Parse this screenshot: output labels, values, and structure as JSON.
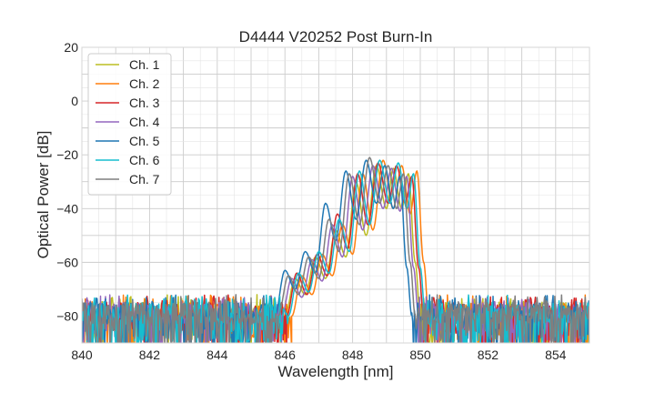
{
  "chart_data": {
    "type": "line",
    "title": "D4444 V20252 Post Burn-In",
    "xlabel": "Wavelength [nm]",
    "ylabel": "Optical Power [dB]",
    "xlim": [
      840,
      855
    ],
    "ylim": [
      -90,
      20
    ],
    "xticks": [
      840,
      842,
      844,
      846,
      848,
      850,
      852,
      854
    ],
    "yticks": [
      20,
      0,
      -20,
      -40,
      -60,
      -80
    ],
    "grid": true,
    "legend_position": "top-left",
    "noise_floor": -80,
    "series": [
      {
        "name": "Ch. 1",
        "color": "#bcbd22",
        "points": [
          [
            840,
            -80
          ],
          [
            846.0,
            -80
          ],
          [
            846.3,
            -66
          ],
          [
            846.6,
            -72
          ],
          [
            846.9,
            -58
          ],
          [
            847.2,
            -66
          ],
          [
            847.5,
            -48
          ],
          [
            847.8,
            -58
          ],
          [
            848.1,
            -30
          ],
          [
            848.4,
            -50
          ],
          [
            848.7,
            -24
          ],
          [
            849.0,
            -40
          ],
          [
            849.2,
            -25
          ],
          [
            849.45,
            -40
          ],
          [
            849.65,
            -27
          ],
          [
            849.85,
            -60
          ],
          [
            850.0,
            -80
          ],
          [
            855,
            -80
          ]
        ]
      },
      {
        "name": "Ch. 2",
        "color": "#ff7f0e",
        "points": [
          [
            840,
            -80
          ],
          [
            846.2,
            -80
          ],
          [
            846.5,
            -65
          ],
          [
            846.8,
            -72
          ],
          [
            847.1,
            -57
          ],
          [
            847.4,
            -65
          ],
          [
            847.7,
            -46
          ],
          [
            848.0,
            -57
          ],
          [
            848.3,
            -27
          ],
          [
            848.6,
            -48
          ],
          [
            848.9,
            -22
          ],
          [
            849.2,
            -40
          ],
          [
            849.45,
            -24
          ],
          [
            849.7,
            -42
          ],
          [
            849.9,
            -26
          ],
          [
            850.1,
            -60
          ],
          [
            850.25,
            -80
          ],
          [
            855,
            -80
          ]
        ]
      },
      {
        "name": "Ch. 3",
        "color": "#d62728",
        "points": [
          [
            840,
            -80
          ],
          [
            846.05,
            -80
          ],
          [
            846.35,
            -64
          ],
          [
            846.65,
            -72
          ],
          [
            846.95,
            -57
          ],
          [
            847.25,
            -65
          ],
          [
            847.55,
            -42
          ],
          [
            847.85,
            -55
          ],
          [
            848.15,
            -27
          ],
          [
            848.45,
            -46
          ],
          [
            848.75,
            -23
          ],
          [
            849.05,
            -38
          ],
          [
            849.3,
            -24
          ],
          [
            849.55,
            -38
          ],
          [
            849.75,
            -28
          ],
          [
            849.95,
            -62
          ],
          [
            850.1,
            -80
          ],
          [
            855,
            -80
          ]
        ]
      },
      {
        "name": "Ch. 4",
        "color": "#9467bd",
        "points": [
          [
            840,
            -80
          ],
          [
            845.9,
            -80
          ],
          [
            846.2,
            -66
          ],
          [
            846.5,
            -73
          ],
          [
            846.8,
            -59
          ],
          [
            847.1,
            -67
          ],
          [
            847.4,
            -46
          ],
          [
            847.7,
            -58
          ],
          [
            848.0,
            -28
          ],
          [
            848.3,
            -48
          ],
          [
            848.6,
            -24
          ],
          [
            848.9,
            -40
          ],
          [
            849.15,
            -25
          ],
          [
            849.4,
            -41
          ],
          [
            849.6,
            -28
          ],
          [
            849.8,
            -62
          ],
          [
            849.95,
            -80
          ],
          [
            855,
            -80
          ]
        ]
      },
      {
        "name": "Ch. 5",
        "color": "#1f77b4",
        "points": [
          [
            840,
            -80
          ],
          [
            845.7,
            -80
          ],
          [
            846.0,
            -63
          ],
          [
            846.3,
            -70
          ],
          [
            846.6,
            -56
          ],
          [
            846.9,
            -64
          ],
          [
            847.2,
            -38
          ],
          [
            847.5,
            -52
          ],
          [
            847.8,
            -26
          ],
          [
            848.1,
            -44
          ],
          [
            848.4,
            -22
          ],
          [
            848.7,
            -38
          ],
          [
            848.95,
            -24
          ],
          [
            849.2,
            -40
          ],
          [
            849.4,
            -28
          ],
          [
            849.6,
            -62
          ],
          [
            849.75,
            -80
          ],
          [
            855,
            -80
          ]
        ]
      },
      {
        "name": "Ch. 6",
        "color": "#17becf",
        "points": [
          [
            840,
            -80
          ],
          [
            846.1,
            -80
          ],
          [
            846.4,
            -64
          ],
          [
            846.7,
            -71
          ],
          [
            847.0,
            -56
          ],
          [
            847.3,
            -64
          ],
          [
            847.6,
            -44
          ],
          [
            847.9,
            -56
          ],
          [
            848.2,
            -26
          ],
          [
            848.5,
            -46
          ],
          [
            848.8,
            -22
          ],
          [
            849.1,
            -38
          ],
          [
            849.35,
            -23
          ],
          [
            849.6,
            -40
          ],
          [
            849.8,
            -27
          ],
          [
            850.0,
            -62
          ],
          [
            850.15,
            -80
          ],
          [
            855,
            -80
          ]
        ]
      },
      {
        "name": "Ch. 7",
        "color": "#7f7f7f",
        "points": [
          [
            840,
            -80
          ],
          [
            845.8,
            -80
          ],
          [
            846.1,
            -65
          ],
          [
            846.4,
            -72
          ],
          [
            846.7,
            -58
          ],
          [
            847.0,
            -66
          ],
          [
            847.3,
            -44
          ],
          [
            847.6,
            -56
          ],
          [
            847.9,
            -27
          ],
          [
            848.2,
            -46
          ],
          [
            848.5,
            -21
          ],
          [
            848.8,
            -38
          ],
          [
            849.05,
            -24
          ],
          [
            849.3,
            -40
          ],
          [
            849.5,
            -27
          ],
          [
            849.7,
            -60
          ],
          [
            849.85,
            -80
          ],
          [
            855,
            -80
          ]
        ]
      }
    ]
  }
}
